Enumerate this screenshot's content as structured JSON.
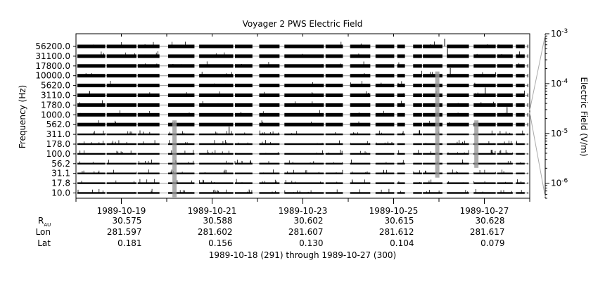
{
  "chart_data": {
    "type": "line",
    "title": "Voyager 2 PWS Electric Field",
    "ylabel": "Frequency (Hz)",
    "y2label": "Electric Field (V/m)",
    "channels": [
      "56200.0",
      "31100.0",
      "17800.0",
      "10000.0",
      "5620.0",
      "3110.0",
      "1780.0",
      "1000.0",
      "562.0",
      "311.0",
      "178.0",
      "100.0",
      "56.2",
      "31.1",
      "17.8",
      "10.0"
    ],
    "x_ticks": [
      "1989-10-19",
      "1989-10-21",
      "1989-10-23",
      "1989-10-25",
      "1989-10-27"
    ],
    "xlim": [
      "1989-10-18",
      "1989-10-28"
    ],
    "colorbar": {
      "scale": "log",
      "range": [
        5e-07,
        0.001
      ],
      "ticks": [
        {
          "base": "10",
          "exp": "-3",
          "value": 0.001
        },
        {
          "base": "10",
          "exp": "-4",
          "value": 0.0001
        },
        {
          "base": "10",
          "exp": "-5",
          "value": 1e-05
        },
        {
          "base": "10",
          "exp": "-6",
          "value": 1e-06
        }
      ]
    },
    "data_gaps": [
      [
        "1989-10-18T00:00",
        "1989-10-18T00:05"
      ],
      [
        "1989-10-18T15:30",
        "1989-10-18T16:15"
      ],
      [
        "1989-10-19T08:00",
        "1989-10-19T08:40"
      ],
      [
        "1989-10-19T20:10",
        "1989-10-20T00:45"
      ],
      [
        "1989-10-20T14:40",
        "1989-10-20T17:10"
      ],
      [
        "1989-10-21T11:10",
        "1989-10-21T12:05"
      ],
      [
        "1989-10-21T21:20",
        "1989-10-22T00:55"
      ],
      [
        "1989-10-22T11:40",
        "1989-10-22T14:15"
      ],
      [
        "1989-10-23T11:05",
        "1989-10-23T12:00"
      ],
      [
        "1989-10-23T21:10",
        "1989-10-24T01:00"
      ],
      [
        "1989-10-24T11:40",
        "1989-10-24T14:25"
      ],
      [
        "1989-10-25T00:20",
        "1989-10-25T01:55"
      ],
      [
        "1989-10-25T06:00",
        "1989-10-25T10:20"
      ],
      [
        "1989-10-25T15:00",
        "1989-10-25T15:30"
      ],
      [
        "1989-10-26T01:50",
        "1989-10-26T04:10"
      ],
      [
        "1989-10-26T15:50",
        "1989-10-26T18:20"
      ],
      [
        "1989-10-27T06:00",
        "1989-10-27T06:45"
      ],
      [
        "1989-10-27T15:00",
        "1989-10-27T16:40"
      ],
      [
        "1989-10-27T21:20",
        "1989-10-27T22:50"
      ]
    ],
    "ephemeris_labels": {
      "r": "R",
      "r_sub": "AU",
      "lon": "Lon",
      "lat": "Lat"
    },
    "ephemeris": [
      {
        "r": "30.575",
        "lon": "281.597",
        "lat": "0.181"
      },
      {
        "r": "30.588",
        "lon": "281.602",
        "lat": "0.156"
      },
      {
        "r": "30.602",
        "lon": "281.607",
        "lat": "0.130"
      },
      {
        "r": "30.615",
        "lon": "281.612",
        "lat": "0.104"
      },
      {
        "r": "30.628",
        "lon": "281.617",
        "lat": "0.079"
      }
    ],
    "footer": "1989-10-18 (291) through 1989-10-27 (300)"
  }
}
